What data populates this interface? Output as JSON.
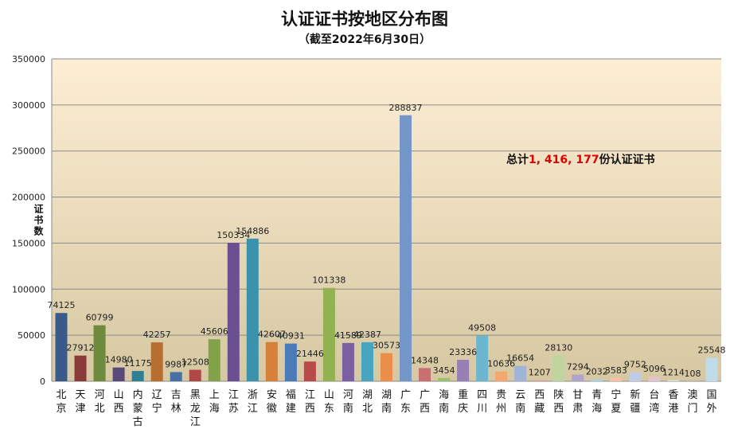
{
  "chart_data": {
    "type": "bar",
    "title": "认证证书按地区分布图",
    "subtitle": "（截至2022年6月30日）",
    "ylabel": "证书数",
    "xlabel": "",
    "ylim": [
      0,
      350000
    ],
    "yticks": [
      "0",
      "50000",
      "100000",
      "150000",
      "200000",
      "250000",
      "300000",
      "350000"
    ],
    "grid": true,
    "annotation": {
      "prefix": "总计",
      "value": "1, 416, 177",
      "suffix": "份认证证书",
      "value_color": "#e00000"
    },
    "categories": [
      "北京",
      "天津",
      "河北",
      "山西",
      "内蒙古",
      "辽宁",
      "吉林",
      "黑龙江",
      "上海",
      "江苏",
      "浙江",
      "安徽",
      "福建",
      "江西",
      "山东",
      "河南",
      "湖北",
      "湖南",
      "广东",
      "广西",
      "海南",
      "重庆",
      "四川",
      "贵州",
      "云南",
      "西藏",
      "陕西",
      "甘肃",
      "青海",
      "宁夏",
      "新疆",
      "台湾",
      "香港",
      "澳门",
      "国外"
    ],
    "values": [
      74125,
      27912,
      60799,
      14980,
      11175,
      42257,
      9987,
      12508,
      45606,
      150334,
      154886,
      42607,
      40931,
      21446,
      101338,
      41589,
      42387,
      30573,
      288837,
      14348,
      3454,
      23336,
      49508,
      10636,
      16654,
      1207,
      28130,
      7294,
      2032,
      3583,
      9752,
      5096,
      1214,
      108,
      25548
    ],
    "colors": [
      "#3a5a8a",
      "#8b3a3a",
      "#6e8a3c",
      "#5a4a7a",
      "#2f7f92",
      "#b86e30",
      "#4670a6",
      "#b04848",
      "#82a24a",
      "#6a5090",
      "#3a92ac",
      "#d6803a",
      "#4a7ab8",
      "#b84a4a",
      "#92b252",
      "#7a60a0",
      "#46a6c0",
      "#ea8e48",
      "#7496c8",
      "#c87070",
      "#9cc070",
      "#9680b4",
      "#6cb6d0",
      "#f4a870",
      "#a0b4d8",
      "#d8a0a0",
      "#c0d4a0",
      "#b0a4c8",
      "#a8d0e0",
      "#f8c0a0",
      "#c0cce4",
      "#e4c4c8",
      "#d8e4d0",
      "#d8d4e4",
      "#c0dce8"
    ]
  }
}
